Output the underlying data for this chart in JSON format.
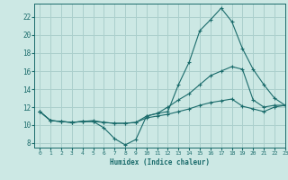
{
  "xlabel": "Humidex (Indice chaleur)",
  "bg_color": "#cce8e4",
  "line_color": "#1a6b6b",
  "grid_color": "#aacfcc",
  "xlim": [
    -0.5,
    23
  ],
  "ylim": [
    7.5,
    23.5
  ],
  "xticks": [
    0,
    1,
    2,
    3,
    4,
    5,
    6,
    7,
    8,
    9,
    10,
    11,
    12,
    13,
    14,
    15,
    16,
    17,
    18,
    19,
    20,
    21,
    22,
    23
  ],
  "yticks": [
    8,
    10,
    12,
    14,
    16,
    18,
    20,
    22
  ],
  "curve1_x": [
    0,
    1,
    2,
    3,
    4,
    5,
    6,
    7,
    8,
    9,
    10,
    11,
    12,
    13,
    14,
    15,
    16,
    17,
    18,
    19,
    20,
    21,
    22,
    23
  ],
  "curve1_y": [
    11.5,
    10.5,
    10.4,
    10.3,
    10.4,
    10.4,
    9.7,
    8.5,
    7.8,
    8.4,
    11.0,
    11.3,
    11.5,
    14.5,
    17.0,
    20.5,
    21.7,
    23.0,
    21.5,
    18.5,
    16.2,
    14.5,
    13.0,
    12.2
  ],
  "curve2_x": [
    0,
    1,
    2,
    3,
    4,
    5,
    6,
    7,
    8,
    9,
    10,
    11,
    12,
    13,
    14,
    15,
    16,
    17,
    18,
    19,
    20,
    21,
    22,
    23
  ],
  "curve2_y": [
    11.5,
    10.5,
    10.4,
    10.3,
    10.4,
    10.4,
    10.3,
    10.2,
    10.2,
    10.3,
    11.0,
    11.3,
    12.0,
    12.8,
    13.5,
    14.5,
    15.5,
    16.0,
    16.5,
    16.2,
    12.8,
    12.0,
    12.2,
    12.2
  ],
  "curve3_x": [
    0,
    1,
    2,
    3,
    4,
    5,
    6,
    7,
    8,
    9,
    10,
    11,
    12,
    13,
    14,
    15,
    16,
    17,
    18,
    19,
    20,
    21,
    22,
    23
  ],
  "curve3_y": [
    11.5,
    10.5,
    10.4,
    10.3,
    10.4,
    10.5,
    10.3,
    10.2,
    10.2,
    10.3,
    10.8,
    11.0,
    11.2,
    11.5,
    11.8,
    12.2,
    12.5,
    12.7,
    12.9,
    12.1,
    11.8,
    11.5,
    12.0,
    12.2
  ]
}
